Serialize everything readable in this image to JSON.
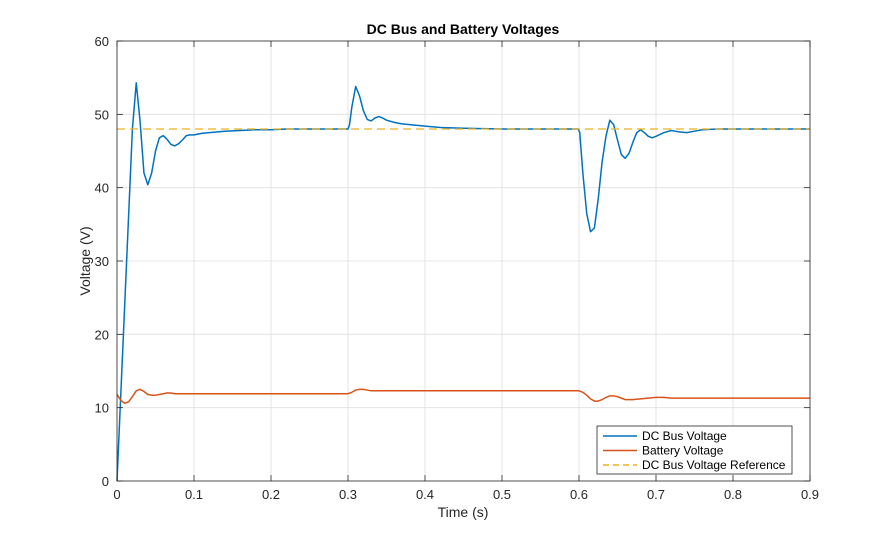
{
  "chart_data": {
    "type": "line",
    "title": "DC Bus and Battery Voltages",
    "xlabel": "Time (s)",
    "ylabel": "Voltage (V)",
    "xlim": [
      0,
      0.9
    ],
    "ylim": [
      0,
      60
    ],
    "xticks": [
      "0",
      "0.1",
      "0.2",
      "0.3",
      "0.4",
      "0.5",
      "0.6",
      "0.7",
      "0.8",
      "0.9"
    ],
    "yticks": [
      "0",
      "10",
      "20",
      "30",
      "40",
      "50",
      "60"
    ],
    "grid": true,
    "legend_position": "bottom-right",
    "series": [
      {
        "name": "DC Bus Voltage",
        "color": "#0072BD",
        "style": "solid",
        "x": [
          0,
          0.005,
          0.01,
          0.015,
          0.02,
          0.025,
          0.03,
          0.035,
          0.04,
          0.045,
          0.05,
          0.055,
          0.06,
          0.065,
          0.07,
          0.075,
          0.08,
          0.085,
          0.09,
          0.095,
          0.1,
          0.11,
          0.12,
          0.14,
          0.16,
          0.18,
          0.2,
          0.22,
          0.25,
          0.28,
          0.3,
          0.302,
          0.305,
          0.31,
          0.315,
          0.32,
          0.325,
          0.33,
          0.335,
          0.34,
          0.345,
          0.35,
          0.36,
          0.37,
          0.38,
          0.4,
          0.42,
          0.45,
          0.5,
          0.55,
          0.599,
          0.601,
          0.605,
          0.61,
          0.615,
          0.62,
          0.625,
          0.63,
          0.635,
          0.64,
          0.645,
          0.65,
          0.655,
          0.66,
          0.665,
          0.67,
          0.675,
          0.68,
          0.685,
          0.69,
          0.695,
          0.7,
          0.71,
          0.72,
          0.73,
          0.74,
          0.75,
          0.76,
          0.78,
          0.8,
          0.85,
          0.9
        ],
        "values": [
          0,
          12,
          24,
          36,
          48,
          54.3,
          49,
          42,
          40.4,
          42,
          45,
          46.8,
          47.1,
          46.6,
          45.9,
          45.7,
          46,
          46.5,
          47.1,
          47.2,
          47.2,
          47.4,
          47.5,
          47.7,
          47.8,
          47.9,
          47.9,
          48,
          48,
          48,
          48,
          48.6,
          51,
          53.8,
          52.5,
          50.5,
          49.3,
          49.1,
          49.5,
          49.7,
          49.5,
          49.2,
          48.9,
          48.7,
          48.6,
          48.4,
          48.2,
          48.1,
          48,
          48,
          48,
          47.5,
          42,
          36.5,
          34,
          34.5,
          38.5,
          43.5,
          47,
          49.2,
          48.6,
          46.5,
          44.5,
          44,
          44.7,
          46.2,
          47.5,
          47.9,
          47.5,
          47,
          46.8,
          47,
          47.5,
          47.8,
          47.6,
          47.5,
          47.7,
          47.9,
          48,
          48,
          48,
          48
        ]
      },
      {
        "name": "Battery Voltage",
        "color": "#D95319",
        "style": "solid",
        "x": [
          0,
          0.005,
          0.01,
          0.015,
          0.02,
          0.025,
          0.03,
          0.035,
          0.04,
          0.045,
          0.05,
          0.055,
          0.06,
          0.065,
          0.07,
          0.075,
          0.08,
          0.09,
          0.1,
          0.15,
          0.2,
          0.25,
          0.3,
          0.305,
          0.31,
          0.315,
          0.32,
          0.325,
          0.33,
          0.34,
          0.35,
          0.4,
          0.5,
          0.598,
          0.6,
          0.605,
          0.61,
          0.615,
          0.62,
          0.625,
          0.63,
          0.635,
          0.64,
          0.645,
          0.65,
          0.655,
          0.66,
          0.665,
          0.67,
          0.68,
          0.69,
          0.7,
          0.71,
          0.72,
          0.75,
          0.8,
          0.85,
          0.9
        ],
        "values": [
          11.8,
          11,
          10.6,
          10.8,
          11.5,
          12.3,
          12.5,
          12.2,
          11.8,
          11.7,
          11.7,
          11.8,
          11.9,
          12,
          12,
          11.9,
          11.9,
          11.9,
          11.9,
          11.9,
          11.9,
          11.9,
          11.9,
          12.1,
          12.4,
          12.5,
          12.5,
          12.4,
          12.3,
          12.3,
          12.3,
          12.3,
          12.3,
          12.3,
          12.3,
          12.1,
          11.7,
          11.2,
          10.9,
          10.9,
          11.1,
          11.4,
          11.6,
          11.6,
          11.5,
          11.3,
          11.1,
          11.1,
          11.1,
          11.2,
          11.3,
          11.4,
          11.4,
          11.3,
          11.3,
          11.3,
          11.3,
          11.3
        ]
      },
      {
        "name": "DC Bus Voltage Reference",
        "color": "#EDB120",
        "style": "dashed",
        "x": [
          0,
          0.9
        ],
        "values": [
          48,
          48
        ]
      }
    ]
  }
}
